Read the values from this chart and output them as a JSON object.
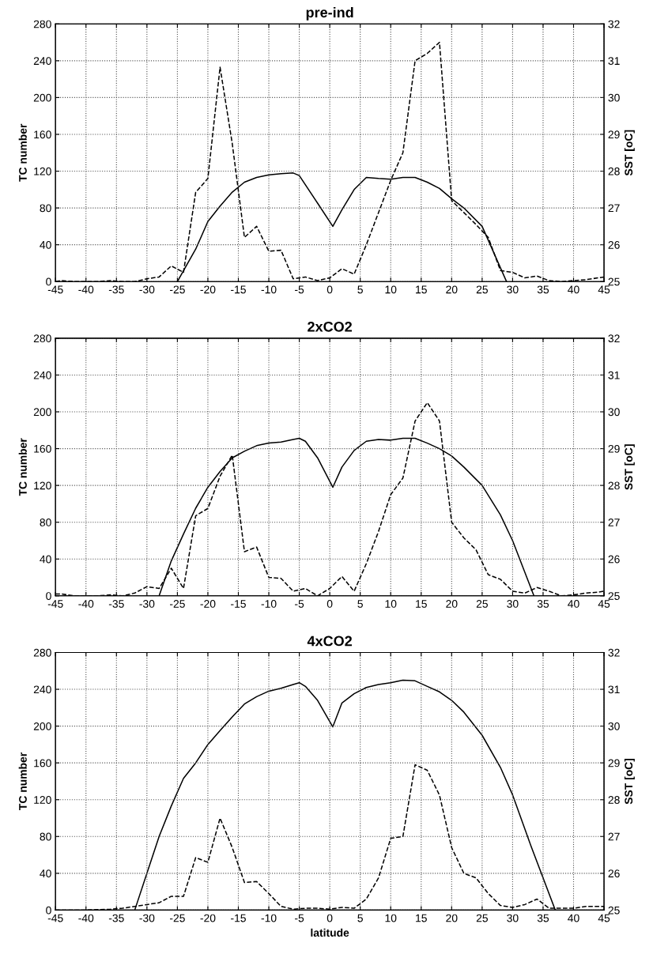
{
  "chart_data": [
    {
      "type": "line",
      "title": "pre-ind",
      "ylabel": "TC number",
      "y2label": "SST [oC]",
      "xlim": [
        -45,
        45
      ],
      "xticks": [
        -45,
        -40,
        -35,
        -30,
        -25,
        -20,
        -15,
        -10,
        -5,
        0,
        5,
        10,
        15,
        20,
        25,
        30,
        35,
        40,
        45
      ],
      "ylim": [
        0,
        280
      ],
      "yticks": [
        0,
        40,
        80,
        120,
        160,
        200,
        240,
        280
      ],
      "y2lim": [
        25,
        32
      ],
      "y2ticks": [
        25,
        26,
        27,
        28,
        29,
        30,
        31,
        32
      ],
      "grid": true,
      "series": [
        {
          "color": "#000000",
          "line_style": "dashed",
          "x": [
            -45,
            -44,
            -42,
            -40,
            -38,
            -36,
            -34,
            -32,
            -30,
            -28,
            -26,
            -24,
            -22,
            -20,
            -18,
            -16,
            -14,
            -12,
            -10,
            -8,
            -6,
            -4,
            -2,
            0,
            2,
            4,
            6,
            8,
            10,
            12,
            14,
            16,
            18,
            20,
            22,
            24,
            26,
            28,
            30,
            32,
            34,
            36,
            38,
            40,
            42,
            44,
            45
          ],
          "values": [
            0,
            1,
            0,
            0,
            0,
            1,
            0,
            0,
            3,
            5,
            17,
            10,
            97,
            112,
            233,
            150,
            48,
            60,
            33,
            34,
            3,
            5,
            1,
            4,
            14,
            8,
            40,
            75,
            110,
            140,
            240,
            248,
            260,
            88,
            75,
            62,
            48,
            12,
            10,
            4,
            6,
            1,
            0,
            1,
            2,
            4,
            5
          ]
        },
        {
          "color": "#000000",
          "line_style": "solid",
          "axis": "y2",
          "x": [
            -25,
            -22,
            -20,
            -18,
            -16,
            -14,
            -12,
            -10,
            -8,
            -6,
            -5,
            -2,
            0.5,
            2,
            4,
            6,
            8,
            10,
            12,
            14,
            16,
            18,
            20,
            22,
            25,
            29
          ],
          "values": [
            25.0,
            25.88,
            26.63,
            27.05,
            27.43,
            27.7,
            27.83,
            27.9,
            27.93,
            27.95,
            27.88,
            27.13,
            26.5,
            26.95,
            27.5,
            27.83,
            27.8,
            27.78,
            27.83,
            27.83,
            27.7,
            27.53,
            27.25,
            27.0,
            26.5,
            25.0
          ]
        }
      ]
    },
    {
      "type": "line",
      "title": "2xCO2",
      "ylabel": "TC number",
      "y2label": "SST [oC]",
      "xlim": [
        -45,
        45
      ],
      "xticks": [
        -45,
        -40,
        -35,
        -30,
        -25,
        -20,
        -15,
        -10,
        -5,
        0,
        5,
        10,
        15,
        20,
        25,
        30,
        35,
        40,
        45
      ],
      "ylim": [
        0,
        280
      ],
      "yticks": [
        0,
        40,
        80,
        120,
        160,
        200,
        240,
        280
      ],
      "y2lim": [
        25,
        32
      ],
      "y2ticks": [
        25,
        26,
        27,
        28,
        29,
        30,
        31,
        32
      ],
      "grid": true,
      "series": [
        {
          "color": "#000000",
          "line_style": "dashed",
          "x": [
            -45,
            -44,
            -42,
            -40,
            -38,
            -36,
            -34,
            -32,
            -30,
            -28,
            -26,
            -24,
            -22,
            -20,
            -18,
            -16,
            -14,
            -12,
            -10,
            -8,
            -6,
            -4,
            -2,
            0,
            2,
            4,
            6,
            8,
            10,
            12,
            14,
            16,
            18,
            20,
            22,
            24,
            26,
            28,
            30,
            32,
            34,
            36,
            38,
            40,
            42,
            44,
            45
          ],
          "values": [
            2,
            2,
            0,
            0,
            0,
            1,
            0,
            3,
            10,
            8,
            30,
            8,
            87,
            95,
            130,
            153,
            48,
            53,
            20,
            19,
            5,
            8,
            0,
            8,
            21,
            5,
            35,
            70,
            110,
            128,
            190,
            210,
            190,
            80,
            63,
            50,
            23,
            18,
            5,
            3,
            9,
            5,
            0,
            1,
            3,
            4,
            5
          ]
        },
        {
          "color": "#000000",
          "line_style": "solid",
          "axis": "y2",
          "x": [
            -28,
            -26,
            -24,
            -22,
            -20,
            -18,
            -16,
            -14,
            -12,
            -10,
            -8,
            -6,
            -5,
            -4,
            -2,
            0.5,
            2,
            4,
            6,
            8,
            10,
            12,
            14,
            16,
            18,
            20,
            22,
            25,
            28,
            30,
            33.5
          ],
          "values": [
            25.0,
            25.95,
            26.68,
            27.38,
            27.95,
            28.38,
            28.75,
            28.93,
            29.08,
            29.15,
            29.18,
            29.25,
            29.28,
            29.2,
            28.75,
            27.95,
            28.5,
            28.95,
            29.2,
            29.25,
            29.23,
            29.28,
            29.28,
            29.15,
            29.0,
            28.8,
            28.5,
            28.0,
            27.2,
            26.5,
            25.0
          ]
        }
      ]
    },
    {
      "type": "line",
      "title": "4xCO2",
      "xlabel": "latitude",
      "ylabel": "TC number",
      "y2label": "SST [oC]",
      "xlim": [
        -45,
        45
      ],
      "xticks": [
        -45,
        -40,
        -35,
        -30,
        -25,
        -20,
        -15,
        -10,
        -5,
        0,
        5,
        10,
        15,
        20,
        25,
        30,
        35,
        40,
        45
      ],
      "ylim": [
        0,
        280
      ],
      "yticks": [
        0,
        40,
        80,
        120,
        160,
        200,
        240,
        280
      ],
      "y2lim": [
        25,
        32
      ],
      "y2ticks": [
        25,
        26,
        27,
        28,
        29,
        30,
        31,
        32
      ],
      "grid": true,
      "series": [
        {
          "color": "#000000",
          "line_style": "dashed",
          "x": [
            -45,
            -44,
            -40,
            -36,
            -34,
            -32,
            -30,
            -28,
            -26,
            -24,
            -22,
            -20,
            -18,
            -16,
            -14,
            -12,
            -10,
            -8,
            -6,
            -4,
            -2,
            0,
            2,
            4,
            6,
            8,
            10,
            12,
            14,
            16,
            18,
            20,
            22,
            24,
            26,
            28,
            30,
            32,
            34,
            36,
            38,
            40,
            42,
            44,
            45
          ],
          "values": [
            0,
            0,
            0,
            1,
            2,
            4,
            6,
            8,
            15,
            15,
            57,
            52,
            100,
            68,
            30,
            31,
            18,
            4,
            1,
            2,
            2,
            1,
            3,
            2,
            12,
            35,
            78,
            80,
            158,
            152,
            125,
            68,
            40,
            35,
            18,
            5,
            3,
            6,
            12,
            2,
            2,
            2,
            4,
            4,
            4
          ]
        },
        {
          "color": "#000000",
          "line_style": "solid",
          "axis": "y2",
          "x": [
            -32,
            -30,
            -28,
            -26,
            -24,
            -22,
            -20,
            -18,
            -16,
            -14,
            -12,
            -10,
            -8,
            -6,
            -5,
            -4,
            -2,
            0.5,
            2,
            4,
            6,
            8,
            10,
            12,
            14,
            16,
            18,
            20,
            22,
            25,
            28,
            30,
            33,
            37
          ],
          "values": [
            25.0,
            26.0,
            27.0,
            27.83,
            28.58,
            29.0,
            29.5,
            29.88,
            30.25,
            30.6,
            30.8,
            30.95,
            31.03,
            31.13,
            31.18,
            31.08,
            30.7,
            29.98,
            30.63,
            30.88,
            31.05,
            31.13,
            31.18,
            31.25,
            31.23,
            31.08,
            30.93,
            30.7,
            30.38,
            29.75,
            28.88,
            28.13,
            26.75,
            25.0
          ]
        }
      ]
    }
  ]
}
